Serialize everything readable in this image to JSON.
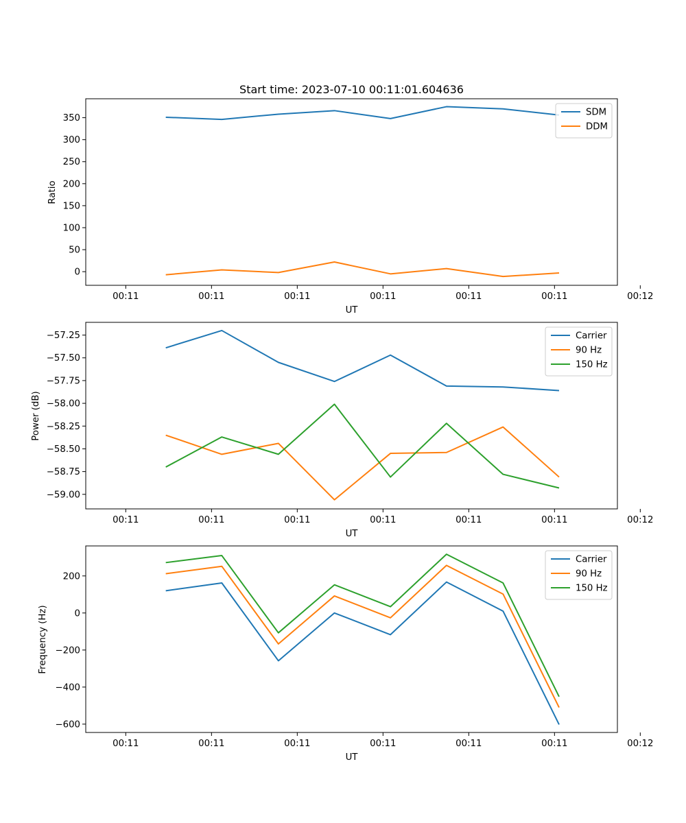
{
  "colors": {
    "c1": "#1f77b4",
    "c2": "#ff7f0e",
    "c3": "#2ca02c"
  },
  "chart_data": [
    {
      "type": "line",
      "title": "Start time: 2023-07-10 00:11:01.604636",
      "xlabel": "UT",
      "ylabel": "Ratio",
      "xlim": [
        -0.7,
        8.6
      ],
      "xticks": [
        0,
        1.5,
        3,
        4.5,
        6,
        7.5,
        9
      ],
      "xticklabels": [
        "00:11",
        "00:11",
        "00:11",
        "00:11",
        "00:11",
        "00:11",
        "00:12"
      ],
      "ylim": [
        -31,
        393
      ],
      "yticks": [
        0,
        50,
        100,
        150,
        200,
        250,
        300,
        350
      ],
      "yticklabels": [
        "0",
        "50",
        "100",
        "150",
        "200",
        "250",
        "300",
        "350"
      ],
      "x": [
        0.7,
        1.68,
        2.67,
        3.65,
        4.63,
        5.61,
        6.6,
        7.58
      ],
      "legend_loc": "upper-right",
      "series": [
        {
          "name": "SDM",
          "color": "#1f77b4",
          "values": [
            351,
            346,
            358,
            366,
            348,
            375,
            370,
            356
          ]
        },
        {
          "name": "DDM",
          "color": "#ff7f0e",
          "values": [
            -7,
            4,
            -2,
            22,
            -5,
            7,
            -11,
            -3
          ]
        }
      ]
    },
    {
      "type": "line",
      "title": "",
      "xlabel": "UT",
      "ylabel": "Power (dB)",
      "xlim": [
        -0.7,
        8.6
      ],
      "xticks": [
        0,
        1.5,
        3,
        4.5,
        6,
        7.5,
        9
      ],
      "xticklabels": [
        "00:11",
        "00:11",
        "00:11",
        "00:11",
        "00:11",
        "00:11",
        "00:12"
      ],
      "ylim": [
        -59.16,
        -57.11
      ],
      "yticks": [
        -59.0,
        -58.75,
        -58.5,
        -58.25,
        -58.0,
        -57.75,
        -57.5,
        -57.25
      ],
      "yticklabels": [
        "−59.00",
        "−58.75",
        "−58.50",
        "−58.25",
        "−58.00",
        "−57.75",
        "−57.50",
        "−57.25"
      ],
      "x": [
        0.7,
        1.68,
        2.67,
        3.65,
        4.63,
        5.61,
        6.6,
        7.58
      ],
      "legend_loc": "upper-right",
      "series": [
        {
          "name": "Carrier",
          "color": "#1f77b4",
          "values": [
            -57.39,
            -57.2,
            -57.55,
            -57.76,
            -57.47,
            -57.81,
            -57.82,
            -57.86
          ]
        },
        {
          "name": "90 Hz",
          "color": "#ff7f0e",
          "values": [
            -58.35,
            -58.56,
            -58.44,
            -59.06,
            -58.55,
            -58.54,
            -58.26,
            -58.81
          ]
        },
        {
          "name": "150 Hz",
          "color": "#2ca02c",
          "values": [
            -58.7,
            -58.37,
            -58.56,
            -58.01,
            -58.81,
            -58.22,
            -58.78,
            -58.93
          ]
        }
      ]
    },
    {
      "type": "line",
      "title": "",
      "xlabel": "UT",
      "ylabel": "Frequency (Hz)",
      "xlim": [
        -0.7,
        8.6
      ],
      "xticks": [
        0,
        1.5,
        3,
        4.5,
        6,
        7.5,
        9
      ],
      "xticklabels": [
        "00:11",
        "00:11",
        "00:11",
        "00:11",
        "00:11",
        "00:11",
        "00:12"
      ],
      "ylim": [
        -645,
        362
      ],
      "yticks": [
        -600,
        -400,
        -200,
        0,
        200
      ],
      "yticklabels": [
        "−600",
        "−400",
        "−200",
        "0",
        "200"
      ],
      "x": [
        0.7,
        1.68,
        2.67,
        3.65,
        4.63,
        5.61,
        6.6,
        7.58
      ],
      "legend_loc": "upper-right",
      "series": [
        {
          "name": "Carrier",
          "color": "#1f77b4",
          "values": [
            120,
            162,
            -258,
            0,
            -117,
            167,
            10,
            -602
          ]
        },
        {
          "name": "90 Hz",
          "color": "#ff7f0e",
          "values": [
            212,
            252,
            -167,
            92,
            -26,
            257,
            102,
            -510
          ]
        },
        {
          "name": "150 Hz",
          "color": "#2ca02c",
          "values": [
            272,
            310,
            -107,
            152,
            34,
            317,
            162,
            -452
          ]
        }
      ]
    }
  ]
}
